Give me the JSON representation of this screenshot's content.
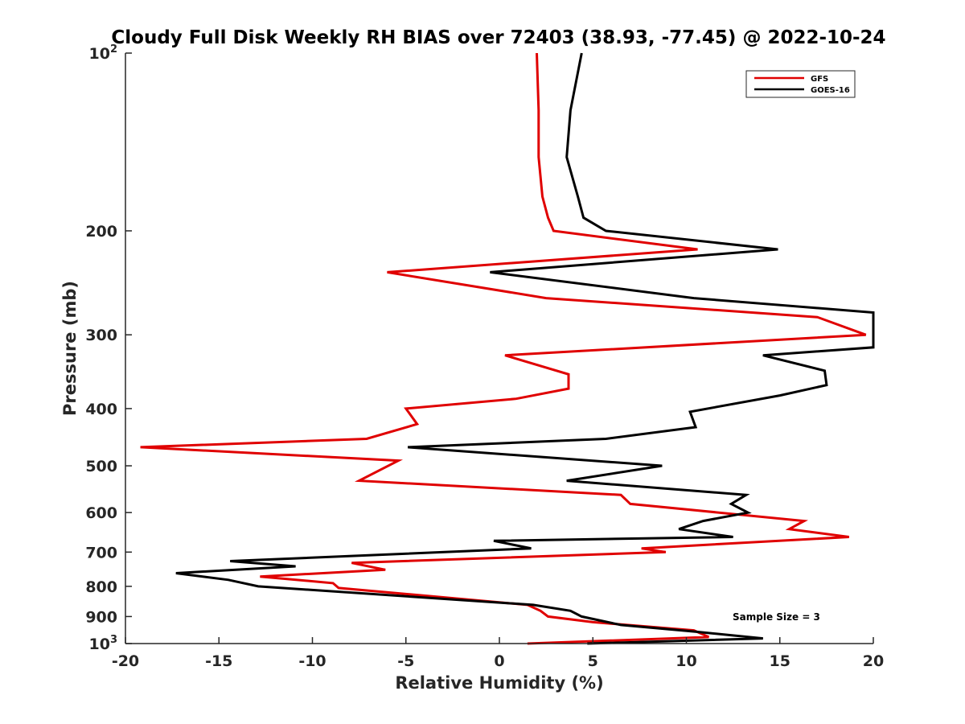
{
  "chart_data": {
    "type": "line",
    "title": "Cloudy Full Disk Weekly RH BIAS over 72403 (38.93, -77.45) @ 2022-10-24",
    "xlabel": "Relative Humidity (%)",
    "ylabel": "Pressure (mb)",
    "xlim": [
      -20,
      20
    ],
    "ylim": [
      100,
      1000
    ],
    "yscale": "log",
    "y_reversed": true,
    "grid": false,
    "legend_position": "top-right",
    "x_ticks": [
      -20,
      -15,
      -10,
      -5,
      0,
      5,
      10,
      15,
      20
    ],
    "x_tick_labels": [
      "-20",
      "-15",
      "-10",
      "-5",
      "0",
      "5",
      "10",
      "15",
      "20"
    ],
    "y_ticks": [
      100,
      200,
      300,
      400,
      500,
      600,
      700,
      800,
      900,
      1000
    ],
    "y_tick_labels": [
      {
        "base": "10",
        "sup": "2"
      },
      {
        "base": "200"
      },
      {
        "base": "300"
      },
      {
        "base": "400"
      },
      {
        "base": "500"
      },
      {
        "base": "600"
      },
      {
        "base": "700"
      },
      {
        "base": "800"
      },
      {
        "base": "900"
      },
      {
        "base": "10",
        "sup": "3"
      }
    ],
    "annotation": "Sample Size = 3",
    "series": [
      {
        "name": "GFS",
        "color": "#e00000",
        "points": [
          [
            2.0,
            100
          ],
          [
            2.1,
            125
          ],
          [
            2.1,
            150
          ],
          [
            2.3,
            175
          ],
          [
            2.6,
            190
          ],
          [
            2.9,
            200
          ],
          [
            10.6,
            215
          ],
          [
            -6.0,
            235
          ],
          [
            2.5,
            260
          ],
          [
            17.0,
            280
          ],
          [
            19.6,
            300
          ],
          [
            0.3,
            325
          ],
          [
            3.7,
            350
          ],
          [
            3.7,
            370
          ],
          [
            0.9,
            385
          ],
          [
            -5.0,
            400
          ],
          [
            -4.4,
            425
          ],
          [
            -7.1,
            450
          ],
          [
            -19.2,
            465
          ],
          [
            -5.4,
            490
          ],
          [
            -7.5,
            530
          ],
          [
            6.5,
            560
          ],
          [
            7.0,
            580
          ],
          [
            16.3,
            620
          ],
          [
            15.5,
            640
          ],
          [
            18.7,
            660
          ],
          [
            7.6,
            690
          ],
          [
            8.9,
            700
          ],
          [
            -7.9,
            730
          ],
          [
            -6.1,
            750
          ],
          [
            -12.8,
            770
          ],
          [
            -8.9,
            790
          ],
          [
            -8.6,
            805
          ],
          [
            1.5,
            860
          ],
          [
            2.2,
            880
          ],
          [
            2.6,
            900
          ],
          [
            5.0,
            920
          ],
          [
            10.4,
            950
          ],
          [
            11.2,
            975
          ],
          [
            1.5,
            1000
          ]
        ]
      },
      {
        "name": "GOES-16",
        "color": "#000000",
        "points": [
          [
            4.4,
            100
          ],
          [
            3.8,
            125
          ],
          [
            3.6,
            150
          ],
          [
            4.2,
            175
          ],
          [
            4.5,
            190
          ],
          [
            5.7,
            200
          ],
          [
            14.9,
            215
          ],
          [
            -0.5,
            235
          ],
          [
            10.4,
            260
          ],
          [
            20.0,
            275
          ],
          [
            20.0,
            315
          ],
          [
            14.1,
            325
          ],
          [
            17.4,
            345
          ],
          [
            17.5,
            365
          ],
          [
            15.0,
            380
          ],
          [
            10.2,
            405
          ],
          [
            10.5,
            430
          ],
          [
            5.7,
            450
          ],
          [
            -4.9,
            465
          ],
          [
            8.7,
            500
          ],
          [
            3.6,
            530
          ],
          [
            13.2,
            560
          ],
          [
            12.4,
            580
          ],
          [
            13.3,
            600
          ],
          [
            10.9,
            620
          ],
          [
            9.6,
            640
          ],
          [
            12.5,
            660
          ],
          [
            -0.3,
            670
          ],
          [
            1.7,
            690
          ],
          [
            -14.4,
            725
          ],
          [
            -10.9,
            740
          ],
          [
            -17.3,
            760
          ],
          [
            -14.5,
            780
          ],
          [
            -12.9,
            800
          ],
          [
            1.8,
            860
          ],
          [
            3.8,
            880
          ],
          [
            4.4,
            900
          ],
          [
            6.5,
            930
          ],
          [
            10.5,
            955
          ],
          [
            14.1,
            980
          ],
          [
            4.7,
            1000
          ]
        ]
      }
    ]
  }
}
